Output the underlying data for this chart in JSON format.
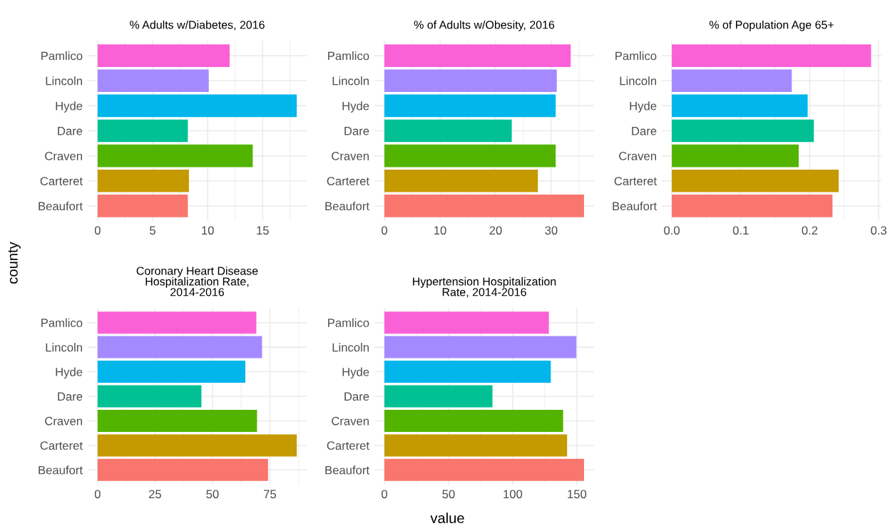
{
  "chart_data": [
    {
      "type": "bar",
      "orientation": "horizontal",
      "title": "% Adults w/Diabetes, 2016",
      "categories": [
        "Pamlico",
        "Lincoln",
        "Hyde",
        "Dare",
        "Craven",
        "Carteret",
        "Beaufort"
      ],
      "values": [
        12.0,
        10.1,
        18.1,
        8.2,
        14.1,
        8.3,
        8.2
      ],
      "colors": [
        "#fb61d7",
        "#a58aff",
        "#00b6eb",
        "#00c094",
        "#53b400",
        "#c49a00",
        "#f8766d"
      ],
      "xlim": [
        -0.9,
        19.0
      ],
      "xticks": [
        0,
        5,
        10,
        15
      ],
      "grid": true
    },
    {
      "type": "bar",
      "orientation": "horizontal",
      "title": "% of Adults w/Obesity, 2016",
      "categories": [
        "Pamlico",
        "Lincoln",
        "Hyde",
        "Dare",
        "Craven",
        "Carteret",
        "Beaufort"
      ],
      "values": [
        33.5,
        31.0,
        30.8,
        22.9,
        30.8,
        27.6,
        35.9
      ],
      "colors": [
        "#fb61d7",
        "#a58aff",
        "#00b6eb",
        "#00c094",
        "#53b400",
        "#c49a00",
        "#f8766d"
      ],
      "xlim": [
        -1.8,
        37.7
      ],
      "xticks": [
        0,
        10,
        20,
        30
      ],
      "grid": true
    },
    {
      "type": "bar",
      "orientation": "horizontal",
      "title": "% of Population Age 65+",
      "categories": [
        "Pamlico",
        "Lincoln",
        "Hyde",
        "Dare",
        "Craven",
        "Carteret",
        "Beaufort"
      ],
      "values": [
        0.289,
        0.174,
        0.197,
        0.206,
        0.184,
        0.242,
        0.233
      ],
      "colors": [
        "#fb61d7",
        "#a58aff",
        "#00b6eb",
        "#00c094",
        "#53b400",
        "#c49a00",
        "#f8766d"
      ],
      "xlim": [
        -0.0145,
        0.304
      ],
      "xticks": [
        {
          "value": 0,
          "label": "0.0"
        },
        0.1,
        0.2,
        0.3
      ],
      "grid": true
    },
    {
      "type": "bar",
      "orientation": "horizontal",
      "title": "Coronary Heart Disease\nHospitalization Rate,\n2014-2016",
      "ylabel": "county",
      "categories": [
        "Pamlico",
        "Lincoln",
        "Hyde",
        "Dare",
        "Craven",
        "Carteret",
        "Beaufort"
      ],
      "values": [
        69.1,
        71.6,
        64.3,
        45.2,
        69.4,
        86.7,
        74.2
      ],
      "colors": [
        "#fb61d7",
        "#a58aff",
        "#00b6eb",
        "#00c094",
        "#53b400",
        "#c49a00",
        "#f8766d"
      ],
      "xlim": [
        -4.3,
        91.0
      ],
      "xticks": [
        0,
        25,
        50,
        75
      ],
      "grid": true
    },
    {
      "type": "bar",
      "orientation": "horizontal",
      "title": "Hypertension Hospitalization\nRate, 2014-2016",
      "xlabel": "value",
      "categories": [
        "Pamlico",
        "Lincoln",
        "Hyde",
        "Dare",
        "Craven",
        "Carteret",
        "Beaufort"
      ],
      "values": [
        128.2,
        149.6,
        129.7,
        84.2,
        139.3,
        142.4,
        155.6
      ],
      "colors": [
        "#fb61d7",
        "#a58aff",
        "#00b6eb",
        "#00c094",
        "#53b400",
        "#c49a00",
        "#f8766d"
      ],
      "xlim": [
        -7.8,
        163.4
      ],
      "xticks": [
        0,
        50,
        100,
        150
      ],
      "grid": true
    }
  ]
}
